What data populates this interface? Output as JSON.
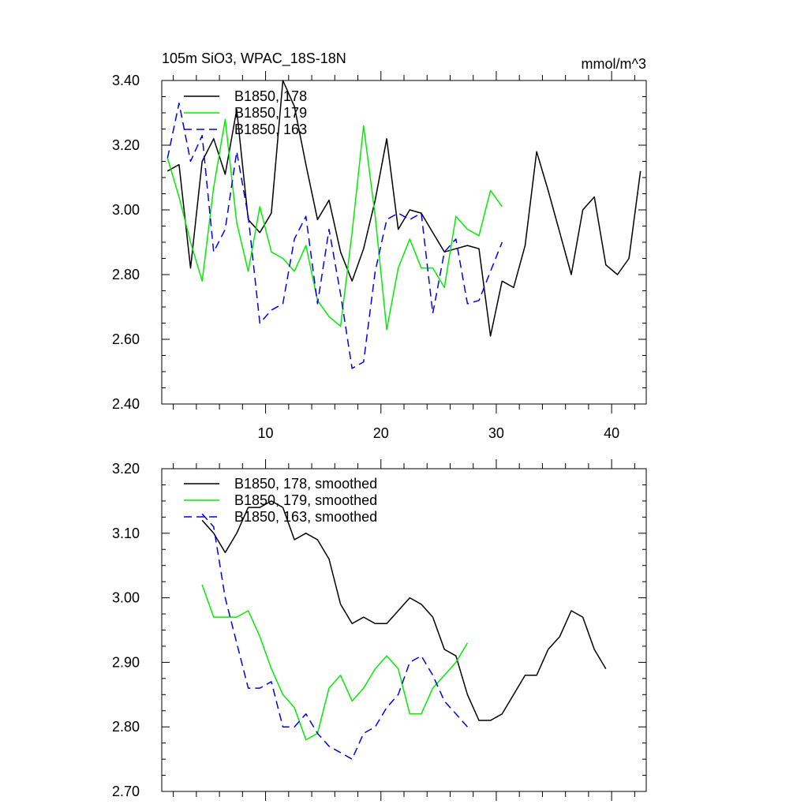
{
  "chart_data": [
    {
      "type": "line",
      "title": "105m SiO3, WPAC_18S-18N",
      "units": "mmol/m^3",
      "xlim": [
        1,
        43
      ],
      "ylim": [
        2.4,
        3.4
      ],
      "xticks": [
        10,
        20,
        30,
        40
      ],
      "yticks": [
        "2.40",
        "2.60",
        "2.80",
        "3.00",
        "3.20",
        "3.40"
      ],
      "show_x_labels": true,
      "grid": false,
      "legend_position": "top-left",
      "series": [
        {
          "name": "B1850, 178",
          "color": "#000000",
          "dash": "solid",
          "x": [
            1.5,
            2.5,
            3.5,
            4.5,
            5.5,
            6.5,
            7.5,
            8.5,
            9.5,
            10.5,
            11.5,
            12.5,
            13.5,
            14.5,
            15.5,
            16.5,
            17.5,
            18.5,
            19.5,
            20.5,
            21.5,
            22.5,
            23.5,
            24.5,
            25.5,
            26.5,
            27.5,
            28.5,
            29.5,
            30.5,
            31.5,
            32.5,
            33.5,
            34.5,
            35.5,
            36.5,
            37.5,
            38.5,
            39.5,
            40.5,
            41.5,
            42.5
          ],
          "values": [
            3.12,
            3.14,
            2.82,
            3.15,
            3.22,
            3.11,
            3.31,
            2.97,
            2.93,
            2.99,
            3.4,
            3.32,
            3.14,
            2.97,
            3.03,
            2.87,
            2.78,
            2.88,
            3.03,
            3.22,
            2.94,
            3.0,
            2.99,
            2.93,
            2.87,
            2.88,
            2.89,
            2.88,
            2.61,
            2.78,
            2.76,
            2.89,
            3.18,
            3.06,
            2.93,
            2.8,
            3.0,
            3.04,
            2.83,
            2.8,
            2.85,
            3.12
          ]
        },
        {
          "name": "B1850, 179",
          "color": "#00ee00",
          "dash": "solid",
          "x": [
            1.5,
            2.5,
            3.5,
            4.5,
            5.5,
            6.5,
            7.5,
            8.5,
            9.5,
            10.5,
            11.5,
            12.5,
            13.5,
            14.5,
            15.5,
            16.5,
            17.5,
            18.5,
            19.5,
            20.5,
            21.5,
            22.5,
            23.5,
            24.5,
            25.5,
            26.5,
            27.5,
            28.5,
            29.5,
            30.5
          ],
          "values": [
            3.16,
            3.04,
            2.9,
            2.78,
            3.07,
            3.28,
            2.96,
            2.81,
            3.01,
            2.87,
            2.85,
            2.81,
            2.89,
            2.72,
            2.67,
            2.64,
            2.93,
            3.26,
            2.98,
            2.63,
            2.82,
            2.91,
            2.82,
            2.82,
            2.76,
            2.98,
            2.94,
            2.92,
            3.06,
            3.01
          ]
        },
        {
          "name": "B1850, 163",
          "color": "#0000ee",
          "dash": "dashed",
          "x": [
            1.5,
            2.5,
            3.5,
            4.5,
            5.5,
            6.5,
            7.5,
            8.5,
            9.5,
            10.5,
            11.5,
            12.5,
            13.5,
            14.5,
            15.5,
            16.5,
            17.5,
            18.5,
            19.5,
            20.5,
            21.5,
            22.5,
            23.5,
            24.5,
            25.5,
            26.5,
            27.5,
            28.5,
            29.5,
            30.5
          ],
          "values": [
            3.16,
            3.33,
            3.15,
            3.23,
            2.87,
            2.94,
            3.18,
            2.98,
            2.65,
            2.69,
            2.71,
            2.91,
            2.98,
            2.71,
            2.94,
            2.74,
            2.51,
            2.53,
            2.81,
            2.97,
            2.99,
            2.97,
            2.99,
            2.68,
            2.87,
            2.91,
            2.71,
            2.72,
            2.81,
            2.9
          ]
        }
      ]
    },
    {
      "type": "line",
      "title": "",
      "units": "",
      "xlim": [
        1,
        43
      ],
      "ylim": [
        2.7,
        3.2
      ],
      "xticks": [
        10,
        20,
        30,
        40
      ],
      "yticks": [
        "2.70",
        "2.80",
        "2.90",
        "3.00",
        "3.10",
        "3.20"
      ],
      "show_x_labels": false,
      "grid": false,
      "legend_position": "top-left",
      "series": [
        {
          "name": "B1850, 178, smoothed",
          "color": "#000000",
          "dash": "solid",
          "x": [
            4.5,
            5.5,
            6.5,
            7.5,
            8.5,
            9.5,
            10.5,
            11.5,
            12.5,
            13.5,
            14.5,
            15.5,
            16.5,
            17.5,
            18.5,
            19.5,
            20.5,
            21.5,
            22.5,
            23.5,
            24.5,
            25.5,
            26.5,
            27.5,
            28.5,
            29.5,
            30.5,
            31.5,
            32.5,
            33.5,
            34.5,
            35.5,
            36.5,
            37.5,
            38.5,
            39.5
          ],
          "values": [
            3.12,
            3.1,
            3.07,
            3.1,
            3.14,
            3.14,
            3.15,
            3.14,
            3.09,
            3.1,
            3.09,
            3.06,
            2.99,
            2.96,
            2.97,
            2.96,
            2.96,
            2.98,
            3.0,
            2.99,
            2.97,
            2.92,
            2.91,
            2.85,
            2.81,
            2.81,
            2.82,
            2.85,
            2.88,
            2.88,
            2.92,
            2.94,
            2.98,
            2.97,
            2.92,
            2.89
          ]
        },
        {
          "name": "B1850, 179, smoothed",
          "color": "#00ee00",
          "dash": "solid",
          "x": [
            4.5,
            5.5,
            6.5,
            7.5,
            8.5,
            9.5,
            10.5,
            11.5,
            12.5,
            13.5,
            14.5,
            15.5,
            16.5,
            17.5,
            18.5,
            19.5,
            20.5,
            21.5,
            22.5,
            23.5,
            24.5,
            25.5,
            26.5,
            27.5
          ],
          "values": [
            3.02,
            2.97,
            2.97,
            2.97,
            2.98,
            2.94,
            2.89,
            2.85,
            2.83,
            2.78,
            2.79,
            2.86,
            2.88,
            2.84,
            2.86,
            2.89,
            2.91,
            2.89,
            2.82,
            2.82,
            2.86,
            2.88,
            2.9,
            2.93
          ]
        },
        {
          "name": "B1850, 163, smoothed",
          "color": "#0000ee",
          "dash": "dashed",
          "x": [
            4.5,
            5.5,
            6.5,
            7.5,
            8.5,
            9.5,
            10.5,
            11.5,
            12.5,
            13.5,
            14.5,
            15.5,
            16.5,
            17.5,
            18.5,
            19.5,
            20.5,
            21.5,
            22.5,
            23.5,
            24.5,
            25.5,
            26.5,
            27.5
          ],
          "values": [
            3.13,
            3.11,
            3.0,
            2.93,
            2.86,
            2.86,
            2.87,
            2.8,
            2.8,
            2.82,
            2.79,
            2.77,
            2.76,
            2.75,
            2.79,
            2.8,
            2.83,
            2.85,
            2.9,
            2.91,
            2.88,
            2.84,
            2.82,
            2.8
          ]
        }
      ]
    }
  ]
}
